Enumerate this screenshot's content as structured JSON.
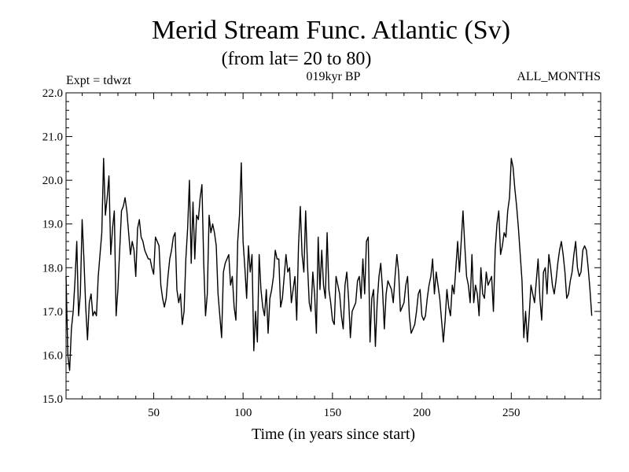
{
  "chart_data": {
    "type": "line",
    "title": "Merid Stream Func. Atlantic (Sv)",
    "subtitle": "(from lat= 20 to 80)",
    "annotations": {
      "left": "Expt = tdwzt",
      "center": "019kyr BP",
      "right": "ALL_MONTHS"
    },
    "xlabel": "Time (in years since start)",
    "ylabel": "",
    "xlim": [
      1,
      300
    ],
    "ylim": [
      15.0,
      22.0
    ],
    "xticks": [
      50,
      100,
      150,
      200,
      250
    ],
    "yticks": [
      "15.0",
      "16.0",
      "17.0",
      "18.0",
      "19.0",
      "20.0",
      "21.0",
      "22.0"
    ],
    "grid": false,
    "series": [
      {
        "x_start": 1,
        "x_step": 1,
        "values": [
          17.8,
          16.0,
          15.65,
          16.6,
          17.0,
          17.7,
          18.6,
          16.9,
          17.4,
          19.1,
          18.2,
          17.1,
          16.35,
          17.2,
          17.4,
          16.9,
          17.0,
          16.9,
          17.8,
          18.3,
          18.8,
          20.5,
          19.2,
          19.6,
          20.1,
          18.3,
          18.9,
          19.3,
          16.9,
          17.5,
          18.4,
          19.3,
          19.4,
          19.6,
          19.3,
          18.8,
          18.3,
          18.6,
          18.4,
          17.8,
          18.9,
          19.1,
          18.7,
          18.6,
          18.4,
          18.3,
          18.2,
          18.2,
          18.0,
          17.85,
          18.7,
          18.6,
          18.5,
          17.6,
          17.3,
          17.1,
          17.3,
          17.8,
          18.2,
          18.4,
          18.7,
          18.8,
          17.5,
          17.2,
          17.4,
          16.7,
          17.0,
          18.2,
          18.9,
          20.0,
          18.1,
          19.5,
          18.2,
          19.2,
          19.1,
          19.6,
          19.9,
          18.1,
          16.9,
          17.4,
          19.2,
          18.8,
          19.0,
          18.8,
          18.5,
          17.4,
          16.9,
          16.4,
          17.9,
          18.1,
          18.2,
          18.3,
          17.6,
          17.8,
          17.1,
          16.8,
          18.6,
          19.2,
          20.4,
          18.6,
          18.0,
          17.3,
          18.5,
          17.9,
          18.3,
          16.1,
          17.0,
          16.3,
          18.3,
          17.5,
          17.1,
          16.9,
          17.5,
          16.5,
          17.3,
          17.5,
          17.8,
          18.4,
          18.2,
          18.2,
          17.1,
          17.3,
          17.8,
          18.3,
          17.9,
          18.0,
          17.2,
          17.5,
          17.8,
          16.8,
          18.5,
          19.4,
          18.3,
          17.9,
          19.3,
          18.1,
          17.2,
          17.0,
          17.9,
          17.4,
          16.5,
          18.7,
          17.5,
          18.4,
          17.6,
          17.3,
          18.8,
          17.5,
          17.2,
          16.8,
          16.7,
          17.8,
          17.6,
          17.4,
          16.9,
          16.6,
          17.6,
          17.9,
          17.3,
          16.4,
          17.0,
          17.1,
          17.2,
          17.7,
          17.8,
          17.3,
          18.2,
          17.4,
          18.6,
          18.7,
          16.3,
          17.3,
          17.5,
          16.2,
          17.2,
          17.8,
          18.1,
          17.5,
          16.6,
          17.4,
          17.7,
          17.6,
          17.5,
          17.2,
          17.8,
          18.3,
          17.9,
          17.0,
          17.1,
          17.2,
          17.6,
          17.8,
          16.9,
          16.5,
          16.6,
          16.7,
          17.0,
          17.4,
          17.5,
          16.9,
          16.8,
          16.9,
          17.3,
          17.6,
          17.8,
          18.2,
          17.4,
          17.9,
          17.6,
          17.3,
          16.8,
          16.3,
          16.8,
          17.5,
          17.1,
          16.9,
          17.6,
          17.4,
          18.0,
          18.6,
          17.9,
          18.6,
          19.3,
          18.5,
          17.8,
          17.6,
          17.2,
          18.3,
          17.2,
          17.6,
          17.4,
          16.9,
          18.0,
          17.4,
          17.3,
          17.9,
          17.6,
          17.7,
          17.8,
          17.0,
          18.4,
          19.0,
          19.3,
          18.3,
          18.5,
          18.8,
          18.7,
          19.3,
          19.6,
          20.5,
          20.3,
          19.8,
          19.4,
          18.9,
          18.3,
          17.7,
          16.4,
          17.0,
          16.3,
          16.9,
          17.6,
          17.4,
          17.2,
          17.7,
          18.2,
          17.3,
          16.8,
          17.9,
          18.0,
          17.4,
          18.3,
          18.0,
          17.6,
          17.4,
          17.7,
          18.1,
          18.4,
          18.6,
          18.3,
          17.9,
          17.3,
          17.4,
          17.7,
          17.9,
          18.3,
          18.6,
          18.0,
          17.8,
          17.9,
          18.4,
          18.5,
          18.4,
          18.0,
          17.5,
          16.9
        ]
      }
    ],
    "line_color": "#000000"
  }
}
